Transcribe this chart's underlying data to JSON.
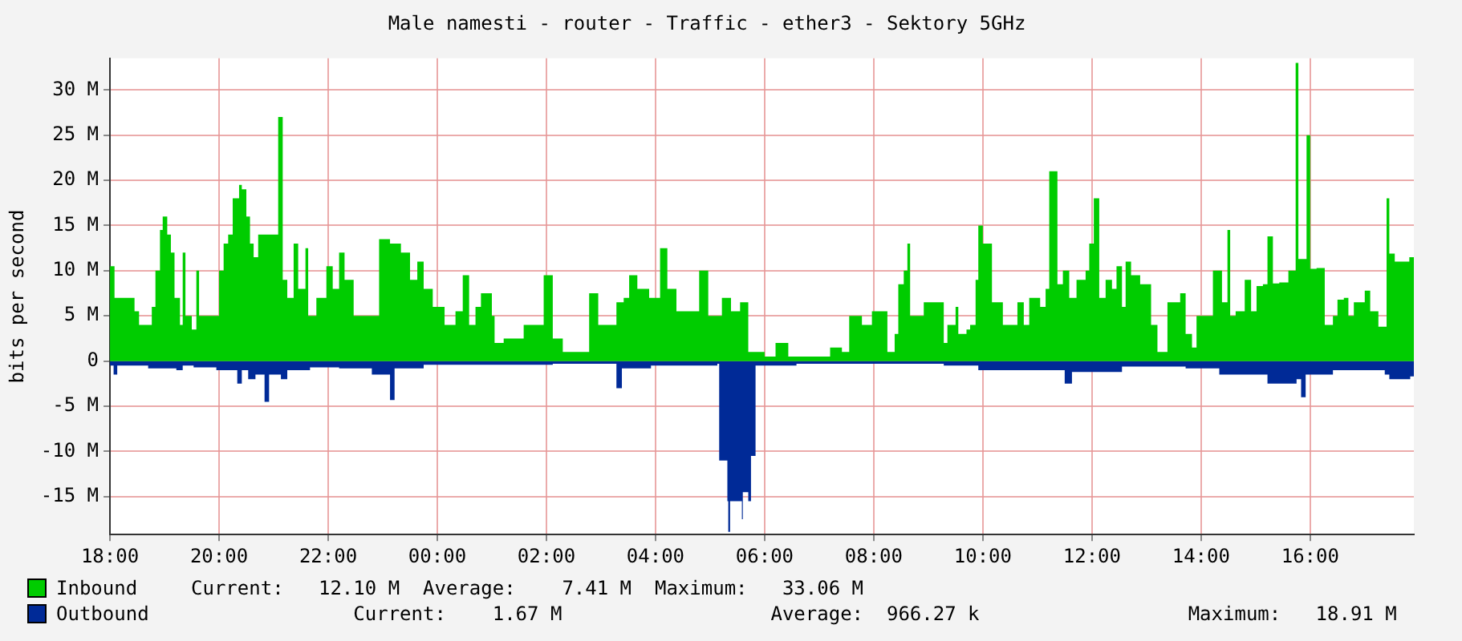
{
  "chart_data": {
    "type": "area",
    "title": "Male namesti - router - Traffic - ether3 - Sektory 5GHz",
    "ylabel": "bits per second",
    "xlim": [
      "--01-01T18:00",
      "--01-02T17:54"
    ],
    "xticks": [
      {
        "value": "--01-01T18:00",
        "label": "18:00"
      },
      {
        "value": "--01-01T20:00",
        "label": "20:00"
      },
      {
        "value": "--01-01T22:00",
        "label": "22:00"
      },
      {
        "value": "--01-02T00:00",
        "label": "00:00"
      },
      {
        "value": "--01-02T02:00",
        "label": "02:00"
      },
      {
        "value": "--01-02T04:00",
        "label": "04:00"
      },
      {
        "value": "--01-02T06:00",
        "label": "06:00"
      },
      {
        "value": "--01-02T08:00",
        "label": "08:00"
      },
      {
        "value": "--01-02T10:00",
        "label": "10:00"
      },
      {
        "value": "--01-02T12:00",
        "label": "12:00"
      },
      {
        "value": "--01-02T14:00",
        "label": "14:00"
      },
      {
        "value": "--01-02T16:00",
        "label": "16:00"
      }
    ],
    "ylim": [
      -19.2,
      33.5
    ],
    "yticks": [
      {
        "value": -15,
        "label": "-15 M"
      },
      {
        "value": -10,
        "label": "-10 M"
      },
      {
        "value": -5,
        "label": "-5 M"
      },
      0,
      {
        "value": 5,
        "label": "5 M"
      },
      {
        "value": 10,
        "label": "10 M"
      },
      {
        "value": 15,
        "label": "15 M"
      },
      {
        "value": 20,
        "label": "20 M"
      },
      {
        "value": 25,
        "label": "25 M"
      },
      {
        "value": 30,
        "label": "30 M"
      }
    ],
    "grid": true,
    "legend": "bottom",
    "series": [
      {
        "name": "Inbound",
        "color": "#00cc00",
        "x": [
          "--01-01T18:00",
          "--01-01T18:05",
          "--01-01T18:20",
          "--01-01T18:27",
          "--01-01T18:32",
          "--01-01T18:42",
          "--01-01T18:46",
          "--01-01T18:50",
          "--01-01T18:55",
          "--01-01T18:58",
          "--01-01T19:03",
          "--01-01T19:07",
          "--01-01T19:11",
          "--01-01T19:17",
          "--01-01T19:20",
          "--01-01T19:23",
          "--01-01T19:30",
          "--01-01T19:35",
          "--01-01T19:38",
          "--01-01T19:45",
          "--01-01T19:53",
          "--01-01T20:00",
          "--01-01T20:05",
          "--01-01T20:10",
          "--01-01T20:15",
          "--01-01T20:22",
          "--01-01T20:25",
          "--01-01T20:30",
          "--01-01T20:34",
          "--01-01T20:38",
          "--01-01T20:43",
          "--01-01T21:05",
          "--01-01T21:10",
          "--01-01T21:15",
          "--01-01T21:22",
          "--01-01T21:27",
          "--01-01T21:35",
          "--01-01T21:38",
          "--01-01T21:47",
          "--01-01T21:58",
          "--01-01T22:05",
          "--01-01T22:12",
          "--01-01T22:18",
          "--01-01T22:28",
          "--01-01T22:56",
          "--01-01T23:08",
          "--01-01T23:20",
          "--01-01T23:30",
          "--01-01T23:38",
          "--01-01T23:45",
          "--01-01T23:55",
          "--01-02T00:08",
          "--01-02T00:20",
          "--01-02T00:28",
          "--01-02T00:35",
          "--01-02T00:42",
          "--01-02T00:48",
          "--01-02T01:00",
          "--01-02T01:03",
          "--01-02T01:13",
          "--01-02T01:28",
          "--01-02T01:35",
          "--01-02T01:50",
          "--01-02T01:57",
          "--01-02T02:07",
          "--01-02T02:18",
          "--01-02T02:37",
          "--01-02T02:47",
          "--01-02T02:57",
          "--01-02T03:10",
          "--01-02T03:17",
          "--01-02T03:25",
          "--01-02T03:31",
          "--01-02T03:40",
          "--01-02T03:53",
          "--01-02T04:05",
          "--01-02T04:13",
          "--01-02T04:23",
          "--01-02T04:48",
          "--01-02T04:58",
          "--01-02T05:13",
          "--01-02T05:23",
          "--01-02T05:33",
          "--01-02T05:42",
          "--01-02T06:00",
          "--01-02T06:12",
          "--01-02T06:26",
          "--01-02T07:07",
          "--01-02T07:12",
          "--01-02T07:25",
          "--01-02T07:33",
          "--01-02T07:47",
          "--01-02T07:58",
          "--01-02T08:15",
          "--01-02T08:23",
          "--01-02T08:27",
          "--01-02T08:33",
          "--01-02T08:37",
          "--01-02T08:40",
          "--01-02T08:48",
          "--01-02T08:55",
          "--01-02T09:17",
          "--01-02T09:21",
          "--01-02T09:30",
          "--01-02T09:33",
          "--01-02T09:42",
          "--01-02T09:46",
          "--01-02T09:52",
          "--01-02T09:55",
          "--01-02T10:00",
          "--01-02T10:10",
          "--01-02T10:22",
          "--01-02T10:38",
          "--01-02T10:45",
          "--01-02T10:51",
          "--01-02T11:03",
          "--01-02T11:09",
          "--01-02T11:13",
          "--01-02T11:22",
          "--01-02T11:28",
          "--01-02T11:35",
          "--01-02T11:43",
          "--01-02T11:53",
          "--01-02T11:57",
          "--01-02T12:02",
          "--01-02T12:08",
          "--01-02T12:15",
          "--01-02T12:22",
          "--01-02T12:27",
          "--01-02T12:33",
          "--01-02T12:37",
          "--01-02T12:43",
          "--01-02T12:53",
          "--01-02T13:05",
          "--01-02T13:12",
          "--01-02T13:23",
          "--01-02T13:37",
          "--01-02T13:43",
          "--01-02T13:50",
          "--01-02T13:55",
          "--01-02T14:13",
          "--01-02T14:23",
          "--01-02T14:29",
          "--01-02T14:32",
          "--01-02T14:38",
          "--01-02T14:48",
          "--01-02T14:55",
          "--01-02T15:01",
          "--01-02T15:08",
          "--01-02T15:13",
          "--01-02T15:19",
          "--01-02T15:26",
          "--01-02T15:36",
          "--01-02T15:44",
          "--01-02T15:47",
          "--01-02T15:56",
          "--01-02T16:00",
          "--01-02T16:07",
          "--01-02T16:16",
          "--01-02T16:25",
          "--01-02T16:30",
          "--01-02T16:37",
          "--01-02T16:42",
          "--01-02T16:48",
          "--01-02T17:00",
          "--01-02T17:06",
          "--01-02T17:15",
          "--01-02T17:24",
          "--01-02T17:27",
          "--01-02T17:33",
          "--01-02T17:49",
          "--01-02T17:54"
        ],
        "values": [
          10.5,
          7,
          7,
          5.5,
          4,
          4,
          6,
          10,
          14.5,
          16,
          14,
          12,
          7,
          4,
          12,
          5,
          3.5,
          10,
          5,
          5,
          5,
          10,
          13,
          14,
          18,
          19.5,
          19,
          16,
          13,
          11.5,
          14,
          27,
          9,
          7,
          13,
          8,
          12.5,
          5,
          7,
          10.5,
          8,
          12,
          9,
          5,
          13.5,
          13,
          12,
          9,
          11,
          8,
          6,
          4,
          5.5,
          9.5,
          4,
          6,
          7.5,
          5,
          2,
          2.5,
          2.5,
          4,
          4,
          9.5,
          2.5,
          1,
          1,
          7.5,
          4,
          4,
          6.5,
          7,
          9.5,
          8,
          7,
          12.5,
          8,
          5.5,
          10,
          5,
          7,
          5.5,
          6.5,
          1,
          0.5,
          2,
          0.5,
          0.5,
          1.5,
          1,
          5,
          4,
          5.5,
          1,
          3,
          8.5,
          10,
          13,
          5,
          5,
          6.5,
          2,
          4,
          6,
          3,
          3.5,
          4,
          9,
          15,
          13,
          6.5,
          4,
          6.5,
          4,
          7,
          6,
          8,
          21,
          8.5,
          10,
          7,
          9,
          10,
          13,
          18,
          7,
          9,
          8,
          10.5,
          6,
          11,
          9.5,
          8.5,
          4,
          1,
          6.5,
          7.5,
          3,
          1.5,
          5,
          10,
          6.5,
          14.5,
          5,
          5.5,
          9,
          5.5,
          8.3,
          8.5,
          13.8,
          8.6,
          8.7,
          10,
          33,
          11.3,
          25,
          10.2,
          10.3,
          4,
          5,
          6.8,
          7,
          5,
          6.5,
          7.8,
          5.5,
          3.8,
          18,
          11.9,
          11,
          11.5,
          12.1
        ]
      },
      {
        "name": "Outbound",
        "color": "#002a97",
        "x": [
          "--01-01T18:00",
          "--01-01T18:04",
          "--01-01T18:08",
          "--01-01T18:42",
          "--01-01T19:13",
          "--01-01T19:20",
          "--01-01T19:32",
          "--01-01T19:57",
          "--01-01T20:20",
          "--01-01T20:25",
          "--01-01T20:32",
          "--01-01T20:40",
          "--01-01T20:50",
          "--01-01T20:55",
          "--01-01T21:08",
          "--01-01T21:15",
          "--01-01T21:40",
          "--01-01T22:12",
          "--01-01T22:48",
          "--01-01T23:08",
          "--01-01T23:13",
          "--01-01T23:45",
          "--01-02T00:38",
          "--01-02T01:32",
          "--01-02T02:07",
          "--01-02T03:17",
          "--01-02T03:23",
          "--01-02T03:55",
          "--01-02T05:08",
          "--01-02T05:10",
          "--01-02T05:17",
          "--01-02T05:19",
          "--01-02T05:20",
          "--01-02T05:22",
          "--01-02T05:32",
          "--01-02T05:35",
          "--01-02T05:36",
          "--01-02T05:42",
          "--01-02T05:45",
          "--01-02T05:50",
          "--01-02T06:35",
          "--01-02T08:23",
          "--01-02T09:17",
          "--01-02T09:55",
          "--01-02T11:22",
          "--01-02T11:30",
          "--01-02T11:38",
          "--01-02T12:33",
          "--01-02T13:43",
          "--01-02T14:20",
          "--01-02T15:13",
          "--01-02T15:45",
          "--01-02T15:50",
          "--01-02T15:55",
          "--01-02T16:25",
          "--01-02T17:22",
          "--01-02T17:27",
          "--01-02T17:50",
          "--01-02T17:54"
        ],
        "values": [
          -0.5,
          -1.5,
          -0.5,
          -0.8,
          -1,
          -0.5,
          -0.7,
          -1,
          -2.5,
          -1,
          -2,
          -1.5,
          -4.5,
          -1.5,
          -2,
          -1,
          -0.7,
          -0.8,
          -1.5,
          -4.3,
          -0.8,
          -0.4,
          -0.4,
          -0.4,
          -0.3,
          -3,
          -0.8,
          -0.5,
          -0.3,
          -11,
          -11,
          -15.5,
          -18.9,
          -15.5,
          -15.5,
          -17.5,
          -14.5,
          -15.5,
          -10.5,
          -0.5,
          -0.3,
          -0.3,
          -0.5,
          -1,
          -1,
          -2.5,
          -1.2,
          -0.6,
          -0.8,
          -1.5,
          -2.5,
          -2,
          -4,
          -1.5,
          -1,
          -1.5,
          -2,
          -1.7,
          -1.7
        ]
      }
    ],
    "annotations": [
      "Current:   12.10 M  Average:    7.41 M  Maximum:   33.06 M",
      "              Current:    1.67 M                  Average:  966.27 k                  Maximum:   18.91 M"
    ]
  }
}
